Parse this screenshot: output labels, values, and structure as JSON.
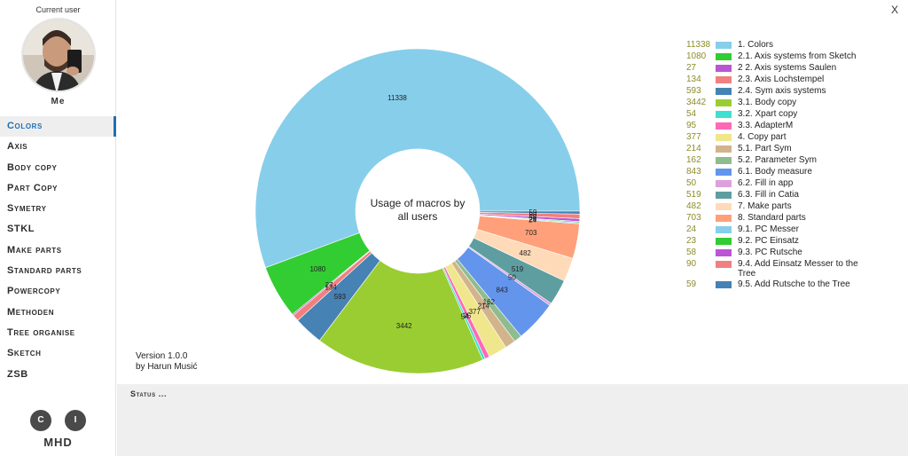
{
  "sidebar": {
    "current_user_label": "Current user",
    "user_name": "Me",
    "nav_items": [
      "Colors",
      "Axis",
      "Body copy",
      "Part Copy",
      "Symetry",
      "STKL",
      "Make parts",
      "Standard parts",
      "Powercopy",
      "Methoden",
      "Tree organise",
      "Sketch",
      "ZSB"
    ],
    "active_index": 0,
    "button_c": "C",
    "button_i": "I",
    "footer": "MHD"
  },
  "window": {
    "close_label": "X"
  },
  "chart_data": {
    "type": "pie",
    "variant": "donut",
    "title": "Usage of macros by all users",
    "start_angle_deg": 0,
    "direction": "counterclockwise",
    "legend_position": "right",
    "categories": [
      "1. Colors",
      "2.1. Axis systems from Sketch",
      "2 2. Axis systems Saulen",
      "2.3. Axis Lochstempel",
      "2.4. Sym axis systems",
      "3.1. Body copy",
      "3.2. Xpart copy",
      "3.3. AdapterM",
      "4. Copy part",
      "5.1. Part Sym",
      "5.2. Parameter Sym",
      "6.1. Body measure",
      "6.2. Fill in app",
      "6.3. Fill in Catia",
      "7. Make parts",
      "8. Standard parts",
      "9.1. PC Messer",
      "9.2. PC Einsatz",
      "9.3. PC Rutsche",
      "9.4. Add Einsatz Messer to the Tree",
      "9.5. Add Rutsche to the Tree"
    ],
    "values": [
      11338,
      1080,
      27,
      134,
      593,
      3442,
      54,
      95,
      377,
      214,
      162,
      843,
      50,
      519,
      482,
      703,
      24,
      23,
      58,
      90,
      59
    ],
    "colors": [
      "#87ceeb",
      "#32cd32",
      "#ba55d3",
      "#f08080",
      "#4682b4",
      "#9acd32",
      "#40e0d0",
      "#ff69b4",
      "#f0e68c",
      "#d2b48c",
      "#8fbc8f",
      "#6495ed",
      "#dda0dd",
      "#5f9ea0",
      "#ffdab9",
      "#ffa07a",
      "#87ceeb",
      "#32cd32",
      "#ba55d3",
      "#f08080",
      "#4682b4"
    ]
  },
  "version": {
    "line1": "Version 1.0.0",
    "line2": "by Harun Musić"
  },
  "status": {
    "text": "Status ..."
  }
}
